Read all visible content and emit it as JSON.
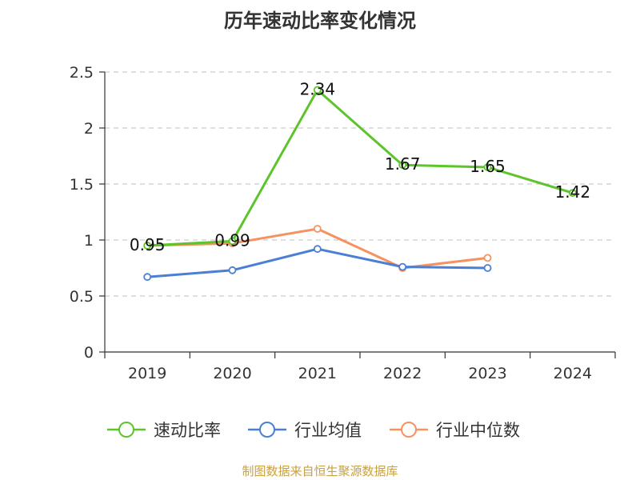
{
  "chart_data": {
    "type": "line",
    "title": "历年速动比率变化情况",
    "categories": [
      "2019",
      "2020",
      "2021",
      "2022",
      "2023",
      "2024"
    ],
    "ylim": [
      0,
      2.5
    ],
    "yticks": [
      "0",
      "0.5",
      "1",
      "1.5",
      "2",
      "2.5"
    ],
    "grid": true,
    "legend_position": "bottom",
    "series": [
      {
        "name": "速动比率",
        "color": "#5ec42b",
        "values": [
          0.95,
          0.99,
          2.34,
          1.67,
          1.65,
          1.42
        ],
        "labels": [
          "0.95",
          "0.99",
          "2.34",
          "1.67",
          "1.65",
          "1.42"
        ]
      },
      {
        "name": "行业均值",
        "color": "#4a7fd4",
        "values": [
          0.67,
          0.73,
          0.92,
          0.76,
          0.75,
          null
        ]
      },
      {
        "name": "行业中位数",
        "color": "#f59260",
        "values": [
          0.95,
          0.97,
          1.1,
          0.75,
          0.84,
          null
        ]
      }
    ]
  },
  "source": "制图数据来自恒生聚源数据库"
}
